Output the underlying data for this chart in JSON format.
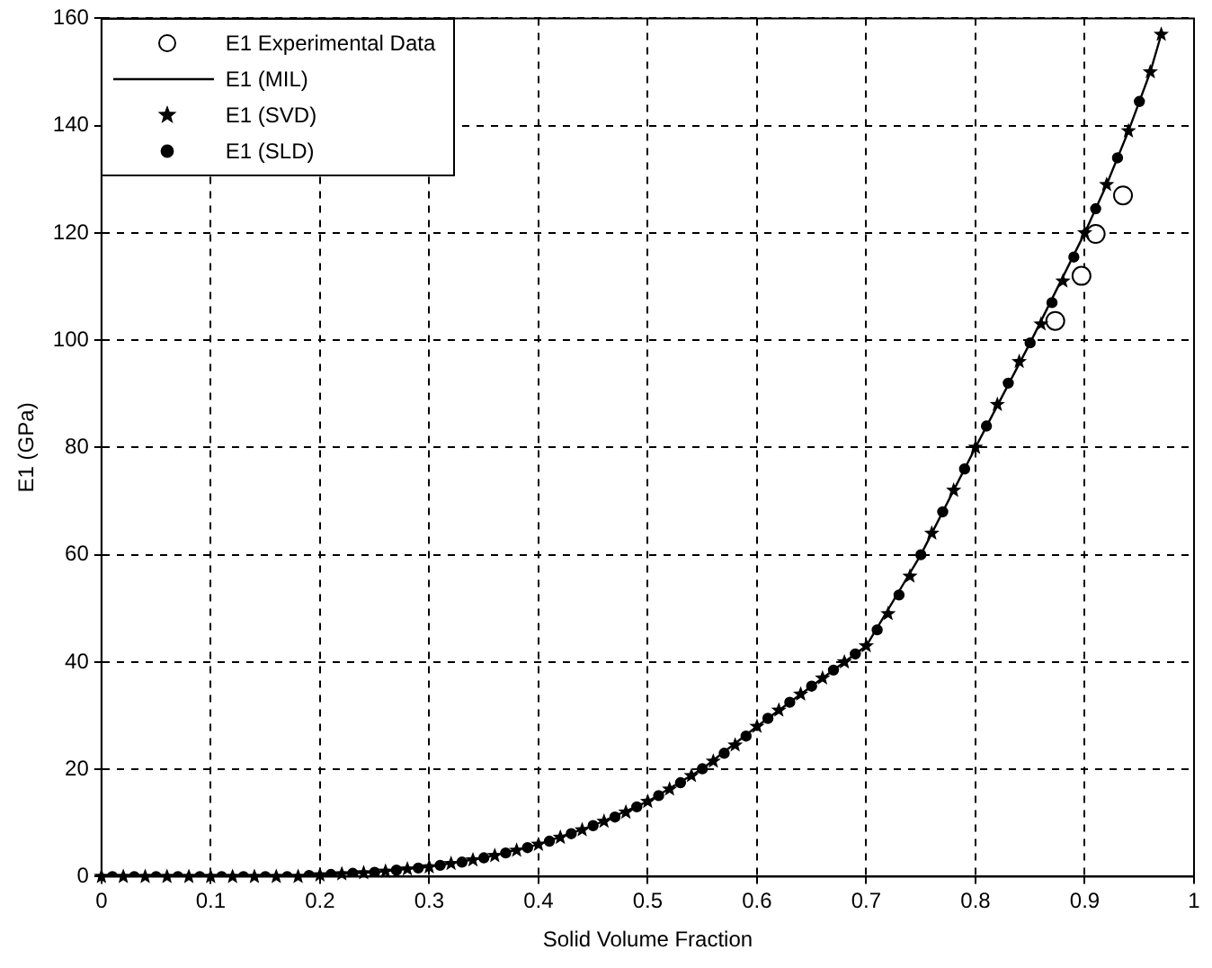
{
  "chart_data": {
    "type": "line",
    "xlabel": "Solid Volume Fraction",
    "ylabel": "E1 (GPa)",
    "x": [
      0,
      0.02,
      0.04,
      0.06,
      0.08,
      0.1,
      0.12,
      0.14,
      0.16,
      0.18,
      0.2,
      0.22,
      0.24,
      0.26,
      0.28,
      0.3,
      0.32,
      0.34,
      0.36,
      0.38,
      0.4,
      0.42,
      0.44,
      0.46,
      0.48,
      0.5,
      0.52,
      0.54,
      0.56,
      0.58,
      0.6,
      0.62,
      0.64,
      0.66,
      0.68,
      0.7,
      0.72,
      0.74,
      0.76,
      0.78,
      0.8,
      0.82,
      0.84,
      0.86,
      0.88,
      0.9,
      0.92,
      0.94,
      0.96,
      0.97
    ],
    "series": [
      {
        "name": "E1 Experimental Data",
        "type": "scatter",
        "marker": "circle",
        "color": "#000000",
        "x": [
          0.873,
          0.897,
          0.91,
          0.935
        ],
        "values": [
          103.6,
          112,
          119.8,
          127
        ]
      },
      {
        "name": "E1 (MIL)",
        "marker": "none",
        "line_style": "solid",
        "color": "#000000",
        "x": [
          0,
          0.1,
          0.2,
          0.25,
          0.3,
          0.35,
          0.4,
          0.45,
          0.5,
          0.55,
          0.6,
          0.65,
          0.7,
          0.75,
          0.8,
          0.85,
          0.9,
          0.92,
          0.94,
          0.96,
          0.97
        ],
        "values": [
          0,
          0,
          0.3,
          0.8,
          1.8,
          3.5,
          6,
          9.5,
          14,
          20.1,
          28,
          35.5,
          43,
          60,
          80,
          99.5,
          120,
          129,
          139,
          150,
          157
        ]
      },
      {
        "name": "E1 (SVD)",
        "type": "scatter",
        "marker": "star",
        "color": "#000000",
        "values": [
          0,
          0,
          0,
          0,
          0,
          0,
          0,
          0,
          0,
          0,
          0.3,
          0.5,
          0.7,
          1,
          1.4,
          1.8,
          2.4,
          3.1,
          3.9,
          4.9,
          6,
          7.3,
          8.7,
          10.3,
          12,
          14,
          16.3,
          18.8,
          21.5,
          24.5,
          28,
          31,
          34,
          37,
          40,
          43,
          49,
          56,
          64,
          72,
          80,
          88,
          96,
          103,
          111,
          120,
          129,
          139,
          150,
          157
        ]
      },
      {
        "name": "E1 (SLD)",
        "type": "scatter",
        "marker": "circle",
        "color": "#000000",
        "x": [
          0.01,
          0.03,
          0.05,
          0.07,
          0.09,
          0.11,
          0.13,
          0.15,
          0.17,
          0.19,
          0.21,
          0.23,
          0.25,
          0.27,
          0.29,
          0.31,
          0.33,
          0.35,
          0.37,
          0.39,
          0.41,
          0.43,
          0.45,
          0.47,
          0.49,
          0.51,
          0.53,
          0.55,
          0.57,
          0.59,
          0.61,
          0.63,
          0.65,
          0.67,
          0.69,
          0.71,
          0.73,
          0.75,
          0.77,
          0.79,
          0.81,
          0.83,
          0.85,
          0.87,
          0.89,
          0.91,
          0.93,
          0.95
        ],
        "values": [
          0,
          0,
          0,
          0,
          0,
          0,
          0,
          0,
          0,
          0.2,
          0.4,
          0.6,
          0.8,
          1.2,
          1.6,
          2.1,
          2.7,
          3.5,
          4.4,
          5.4,
          6.6,
          8,
          9.5,
          11.1,
          13,
          15.1,
          17.5,
          20.1,
          23,
          26.2,
          29.5,
          32.5,
          35.5,
          38.5,
          41.5,
          46,
          52.5,
          60,
          68,
          76,
          84,
          92,
          99.5,
          107,
          115.5,
          124.5,
          134,
          144.5
        ]
      }
    ],
    "xlim": [
      0,
      1
    ],
    "ylim": [
      0,
      160
    ],
    "xticks": [
      0,
      0.1,
      0.2,
      0.3,
      0.4,
      0.5,
      0.6,
      0.7,
      0.8,
      0.9,
      1
    ],
    "yticks": [
      0,
      20,
      40,
      60,
      80,
      100,
      120,
      140,
      160
    ],
    "grid": true,
    "legend": "top left"
  }
}
